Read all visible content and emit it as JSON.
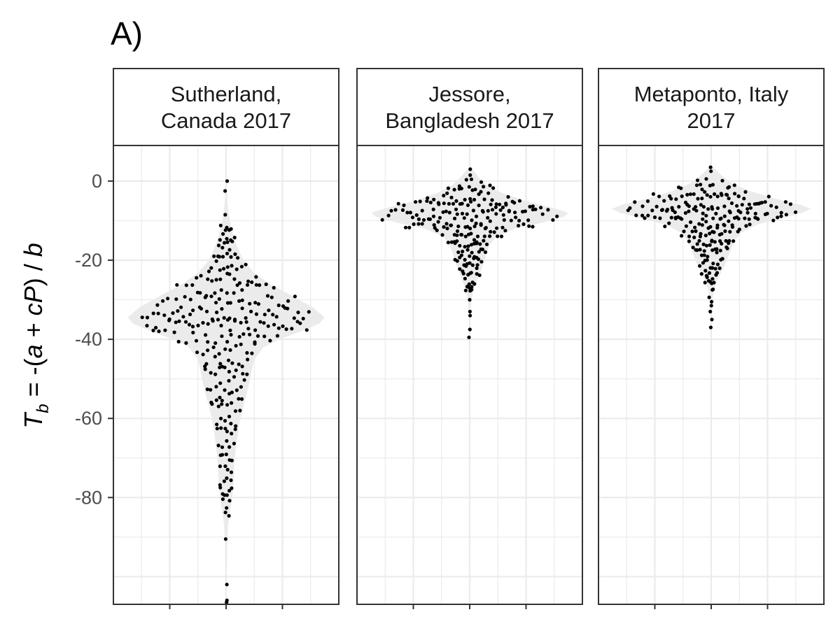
{
  "figure": {
    "tag": "A)",
    "ylabel": {
      "main": "T",
      "sub": "b",
      "rest_parts": [
        {
          "text": " = -(",
          "italic": false
        },
        {
          "text": "a",
          "italic": true
        },
        {
          "text": " + ",
          "italic": false
        },
        {
          "text": "cP",
          "italic": true
        },
        {
          "text": ") / ",
          "italic": false
        },
        {
          "text": "b",
          "italic": true
        }
      ]
    }
  },
  "chart_data": {
    "type": "violin-beeswarm",
    "ylabel": "T_b = -(a + cP) / b",
    "ylim": [
      -107,
      9
    ],
    "yticks": [
      0,
      -20,
      -40,
      -60,
      -80
    ],
    "ytick_labels": [
      "0",
      "-20",
      "-40",
      "-60",
      "-80"
    ],
    "grid": true,
    "colors": {
      "violin": "#ebebeb",
      "points": "#000000",
      "grid": "#ebebeb",
      "border": "#333333",
      "tick_label": "#4d4d4d"
    },
    "panels": [
      {
        "title_lines": [
          "Sutherland,",
          "Canada 2017"
        ],
        "violin": [
          [
            0,
            0.004
          ],
          [
            -2,
            0.008
          ],
          [
            -5,
            0.012
          ],
          [
            -8,
            0.024
          ],
          [
            -11,
            0.045
          ],
          [
            -14,
            0.075
          ],
          [
            -17,
            0.115
          ],
          [
            -20,
            0.17
          ],
          [
            -23,
            0.27
          ],
          [
            -26,
            0.43
          ],
          [
            -29,
            0.65
          ],
          [
            -32,
            0.86
          ],
          [
            -34.5,
            0.97
          ],
          [
            -36,
            0.92
          ],
          [
            -38,
            0.74
          ],
          [
            -40,
            0.52
          ],
          [
            -42,
            0.37
          ],
          [
            -45,
            0.28
          ],
          [
            -48,
            0.25
          ],
          [
            -51,
            0.23
          ],
          [
            -54,
            0.2
          ],
          [
            -57,
            0.17
          ],
          [
            -60,
            0.14
          ],
          [
            -63,
            0.12
          ],
          [
            -66,
            0.105
          ],
          [
            -69,
            0.09
          ],
          [
            -72,
            0.08
          ],
          [
            -75,
            0.075
          ],
          [
            -78,
            0.068
          ],
          [
            -81,
            0.055
          ],
          [
            -84,
            0.035
          ],
          [
            -87,
            0.02
          ],
          [
            -90,
            0.013
          ],
          [
            -93,
            0.01
          ],
          [
            -96,
            0.008
          ],
          [
            -99,
            0.006
          ],
          [
            -102,
            0.005
          ],
          [
            -104,
            0.004
          ],
          [
            -106.5,
            0.0
          ]
        ],
        "outliers": [
          0,
          -2.5,
          -8.5,
          -90.5,
          -102,
          -106,
          -106.5
        ],
        "bins": [
          {
            "y": -12.5,
            "n": 6
          },
          {
            "y": -15.5,
            "n": 9
          },
          {
            "y": -18.5,
            "n": 9
          },
          {
            "y": -21.5,
            "n": 10
          },
          {
            "y": -24.5,
            "n": 13
          },
          {
            "y": -27.5,
            "n": 17
          },
          {
            "y": -30.5,
            "n": 25
          },
          {
            "y": -33.5,
            "n": 33
          },
          {
            "y": -36.5,
            "n": 35
          },
          {
            "y": -39.5,
            "n": 19
          },
          {
            "y": -42.5,
            "n": 12
          },
          {
            "y": -45.5,
            "n": 10
          },
          {
            "y": -48.5,
            "n": 10
          },
          {
            "y": -51.5,
            "n": 9
          },
          {
            "y": -54.5,
            "n": 8
          },
          {
            "y": -57.5,
            "n": 7
          },
          {
            "y": -60.5,
            "n": 6
          },
          {
            "y": -63.5,
            "n": 6
          },
          {
            "y": -66.5,
            "n": 5
          },
          {
            "y": -69.5,
            "n": 5
          },
          {
            "y": -72.5,
            "n": 4
          },
          {
            "y": -75.5,
            "n": 4
          },
          {
            "y": -78.5,
            "n": 6
          },
          {
            "y": -81.5,
            "n": 3
          },
          {
            "y": -84,
            "n": 2
          }
        ]
      },
      {
        "title_lines": [
          "Jessore,",
          "Bangladesh 2017"
        ],
        "violin": [
          [
            3.5,
            0.0
          ],
          [
            2.5,
            0.04
          ],
          [
            1,
            0.09
          ],
          [
            -1,
            0.17
          ],
          [
            -3,
            0.32
          ],
          [
            -5,
            0.55
          ],
          [
            -7,
            0.85
          ],
          [
            -8,
            0.97
          ],
          [
            -9,
            0.93
          ],
          [
            -10.5,
            0.72
          ],
          [
            -12,
            0.45
          ],
          [
            -14,
            0.26
          ],
          [
            -16,
            0.2
          ],
          [
            -18,
            0.17
          ],
          [
            -20,
            0.15
          ],
          [
            -22,
            0.12
          ],
          [
            -24,
            0.09
          ],
          [
            -26,
            0.06
          ],
          [
            -28,
            0.035
          ],
          [
            -30,
            0.018
          ],
          [
            -33,
            0.01
          ],
          [
            -36,
            0.007
          ],
          [
            -38,
            0.005
          ],
          [
            -40,
            0.0
          ]
        ],
        "outliers": [
          3,
          1.5,
          -30,
          -33,
          -34,
          -37.5,
          -39.5
        ],
        "bins": [
          {
            "y": -0.5,
            "n": 4
          },
          {
            "y": -2.5,
            "n": 12
          },
          {
            "y": -4.5,
            "n": 21
          },
          {
            "y": -6.5,
            "n": 30
          },
          {
            "y": -8.5,
            "n": 38
          },
          {
            "y": -10.5,
            "n": 28
          },
          {
            "y": -12.5,
            "n": 19
          },
          {
            "y": -14.5,
            "n": 14
          },
          {
            "y": -16.5,
            "n": 12
          },
          {
            "y": -18.5,
            "n": 11
          },
          {
            "y": -20.5,
            "n": 9
          },
          {
            "y": -22.5,
            "n": 8
          },
          {
            "y": -24.5,
            "n": 6
          },
          {
            "y": -26.5,
            "n": 6
          },
          {
            "y": -28,
            "n": 3
          }
        ]
      },
      {
        "title_lines": [
          "Metaponto, Italy",
          "2017"
        ],
        "violin": [
          [
            4,
            0.0
          ],
          [
            3,
            0.04
          ],
          [
            1.5,
            0.1
          ],
          [
            -0.5,
            0.2
          ],
          [
            -2.5,
            0.38
          ],
          [
            -4.5,
            0.64
          ],
          [
            -6,
            0.88
          ],
          [
            -7,
            0.98
          ],
          [
            -8,
            0.9
          ],
          [
            -9.5,
            0.68
          ],
          [
            -11,
            0.45
          ],
          [
            -13,
            0.3
          ],
          [
            -15,
            0.23
          ],
          [
            -17,
            0.2
          ],
          [
            -19,
            0.17
          ],
          [
            -21,
            0.14
          ],
          [
            -23,
            0.1
          ],
          [
            -25,
            0.06
          ],
          [
            -27,
            0.035
          ],
          [
            -29,
            0.018
          ],
          [
            -31,
            0.012
          ],
          [
            -33,
            0.008
          ],
          [
            -35,
            0.006
          ],
          [
            -37.5,
            0.0
          ]
        ],
        "outliers": [
          3.5,
          2.5,
          -30.5,
          -31.5,
          -33,
          -35,
          -37
        ],
        "bins": [
          {
            "y": -0.5,
            "n": 6
          },
          {
            "y": -2.5,
            "n": 15
          },
          {
            "y": -4.5,
            "n": 25
          },
          {
            "y": -6.5,
            "n": 36
          },
          {
            "y": -8.5,
            "n": 35
          },
          {
            "y": -10.5,
            "n": 26
          },
          {
            "y": -12.5,
            "n": 17
          },
          {
            "y": -14.5,
            "n": 14
          },
          {
            "y": -16.5,
            "n": 12
          },
          {
            "y": -18.5,
            "n": 11
          },
          {
            "y": -20.5,
            "n": 9
          },
          {
            "y": -22.5,
            "n": 8
          },
          {
            "y": -24.5,
            "n": 6
          },
          {
            "y": -26.5,
            "n": 3
          },
          {
            "y": -28.5,
            "n": 2
          }
        ]
      }
    ]
  }
}
